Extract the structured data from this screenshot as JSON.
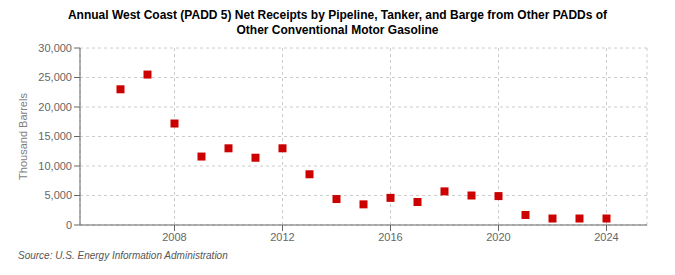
{
  "chart_data": {
    "type": "scatter",
    "title": "Annual West Coast (PADD 5) Net Receipts by Pipeline, Tanker, and Barge from Other PADDs of\nOther Conventional Motor Gasoline",
    "ylabel": "Thousand Barrels",
    "source": "Source: U.S. Energy Information Administration",
    "x": [
      2006,
      2007,
      2008,
      2009,
      2010,
      2011,
      2012,
      2013,
      2014,
      2015,
      2016,
      2017,
      2018,
      2019,
      2020,
      2021,
      2022,
      2023,
      2024
    ],
    "values": [
      23000,
      25500,
      17200,
      11600,
      13000,
      11400,
      13000,
      8600,
      4400,
      3500,
      4600,
      3900,
      5700,
      5000,
      4900,
      1700,
      1100,
      1100,
      1100
    ],
    "color": "#cc0000",
    "marker": "square",
    "xlim": [
      2004.5,
      2025.5
    ],
    "xticks": [
      2008,
      2012,
      2016,
      2020,
      2024
    ],
    "ylim": [
      0,
      30000
    ],
    "yticks": [
      0,
      {
        "value": 5000,
        "label": "5,000"
      },
      {
        "value": 10000,
        "label": "10,000"
      },
      {
        "value": 15000,
        "label": "15,000"
      },
      {
        "value": 20000,
        "label": "20,000"
      },
      {
        "value": 25000,
        "label": "25,000"
      },
      {
        "value": 30000,
        "label": "30,000"
      }
    ],
    "grid": true
  }
}
